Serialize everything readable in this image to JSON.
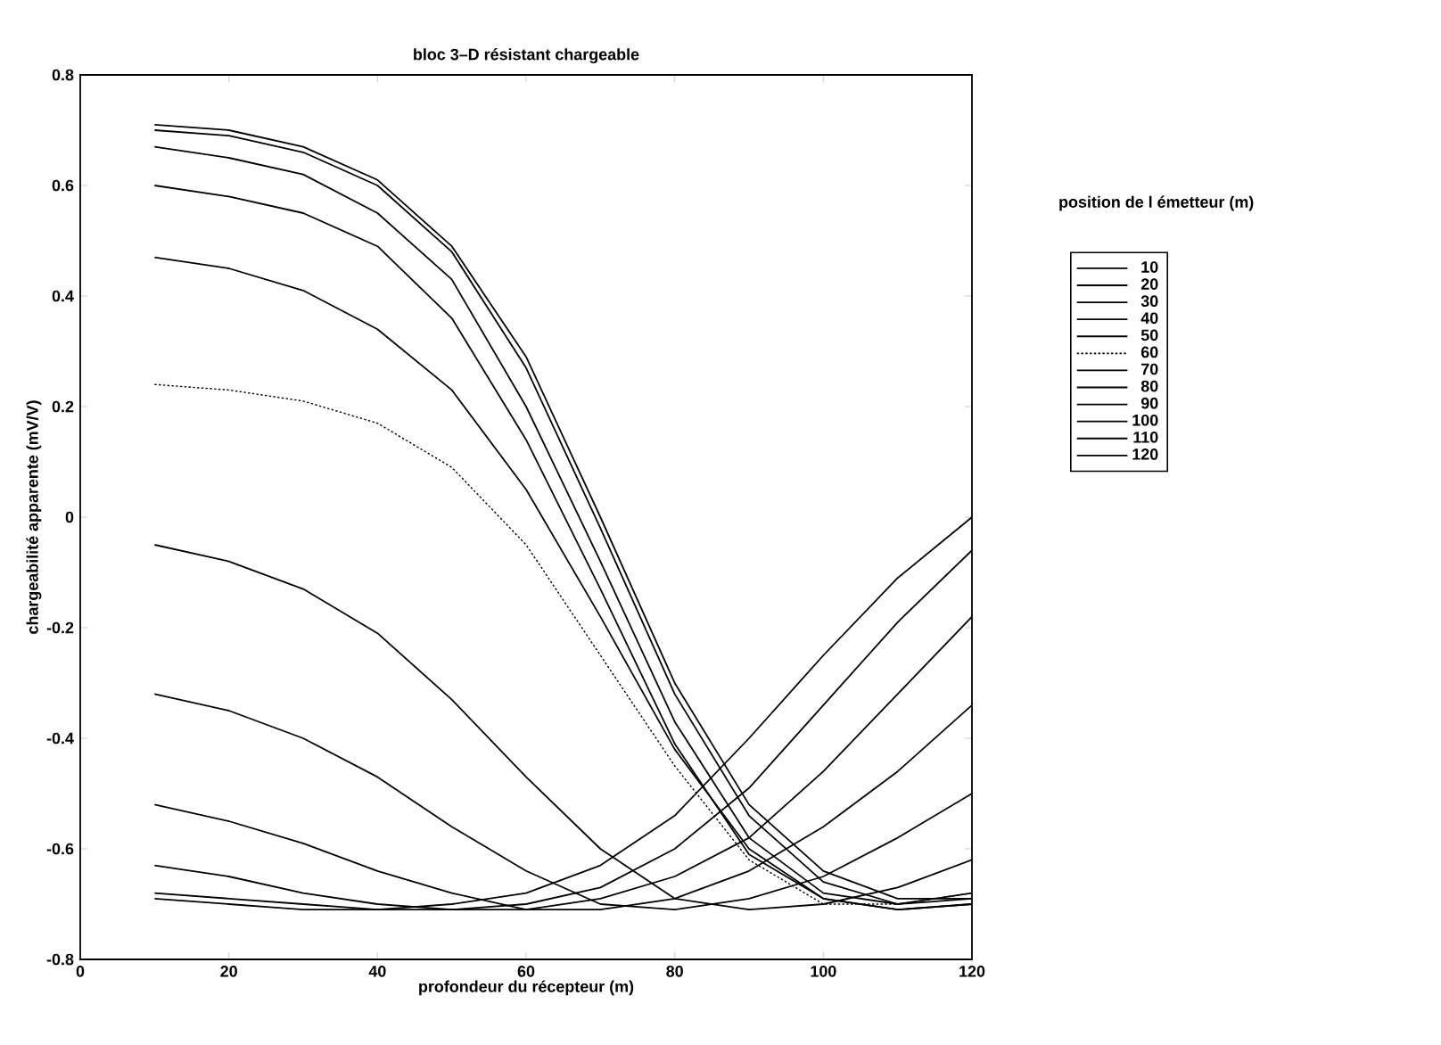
{
  "chart_data": {
    "type": "line",
    "title": "bloc 3–D résistant chargeable",
    "xlabel": "profondeur du récepteur (m)",
    "ylabel": "chargeabilité apparente (mV/V)",
    "legend_title": "position de l émetteur (m)",
    "legend": "right",
    "grid": false,
    "line_style": "solid",
    "x": [
      10,
      20,
      30,
      40,
      50,
      60,
      70,
      80,
      90,
      100,
      110,
      120
    ],
    "xlim": [
      0,
      120
    ],
    "xticks": [
      0,
      20,
      40,
      60,
      80,
      100,
      120
    ],
    "ylim": [
      -0.8,
      0.8
    ],
    "yticks": [
      -0.8,
      -0.6,
      -0.4,
      -0.2,
      0,
      0.2,
      0.4,
      0.6,
      0.8
    ],
    "series": [
      {
        "name": "10",
        "color": "#000000",
        "values": [
          0.71,
          0.7,
          0.67,
          0.61,
          0.49,
          0.29,
          0.0,
          -0.3,
          -0.52,
          -0.64,
          -0.69,
          -0.69
        ]
      },
      {
        "name": "20",
        "color": "#000000",
        "values": [
          0.7,
          0.69,
          0.66,
          0.6,
          0.48,
          0.27,
          -0.02,
          -0.32,
          -0.54,
          -0.66,
          -0.7,
          -0.69
        ]
      },
      {
        "name": "30",
        "color": "#000000",
        "values": [
          0.67,
          0.65,
          0.62,
          0.55,
          0.43,
          0.2,
          -0.08,
          -0.37,
          -0.58,
          -0.68,
          -0.7,
          -0.68
        ]
      },
      {
        "name": "40",
        "color": "#000000",
        "values": [
          0.6,
          0.58,
          0.55,
          0.49,
          0.36,
          0.14,
          -0.13,
          -0.41,
          -0.61,
          -0.69,
          -0.71,
          -0.7
        ]
      },
      {
        "name": "50",
        "color": "#000000",
        "values": [
          0.47,
          0.45,
          0.41,
          0.34,
          0.23,
          0.05,
          -0.18,
          -0.42,
          -0.6,
          -0.69,
          -0.71,
          -0.7
        ]
      },
      {
        "name": "60",
        "color": "#000000",
        "line_style": "dotted",
        "values": [
          0.24,
          0.23,
          0.21,
          0.17,
          0.09,
          -0.05,
          -0.25,
          -0.45,
          -0.62,
          -0.7,
          -0.7,
          -0.68
        ]
      },
      {
        "name": "70",
        "color": "#000000",
        "values": [
          -0.05,
          -0.08,
          -0.13,
          -0.21,
          -0.33,
          -0.47,
          -0.6,
          -0.69,
          -0.71,
          -0.7,
          -0.67,
          -0.62
        ]
      },
      {
        "name": "80",
        "color": "#000000",
        "values": [
          -0.32,
          -0.35,
          -0.4,
          -0.47,
          -0.56,
          -0.64,
          -0.7,
          -0.71,
          -0.69,
          -0.65,
          -0.58,
          -0.5
        ]
      },
      {
        "name": "90",
        "color": "#000000",
        "values": [
          -0.52,
          -0.55,
          -0.59,
          -0.64,
          -0.68,
          -0.71,
          -0.71,
          -0.69,
          -0.64,
          -0.56,
          -0.46,
          -0.34
        ]
      },
      {
        "name": "100",
        "color": "#000000",
        "values": [
          -0.63,
          -0.65,
          -0.68,
          -0.7,
          -0.71,
          -0.71,
          -0.69,
          -0.65,
          -0.58,
          -0.46,
          -0.32,
          -0.18
        ]
      },
      {
        "name": "110",
        "color": "#000000",
        "values": [
          -0.68,
          -0.69,
          -0.7,
          -0.71,
          -0.71,
          -0.7,
          -0.67,
          -0.6,
          -0.49,
          -0.34,
          -0.19,
          -0.06
        ]
      },
      {
        "name": "120",
        "color": "#000000",
        "values": [
          -0.69,
          -0.7,
          -0.71,
          -0.71,
          -0.7,
          -0.68,
          -0.63,
          -0.54,
          -0.4,
          -0.25,
          -0.11,
          0.0
        ]
      }
    ]
  }
}
